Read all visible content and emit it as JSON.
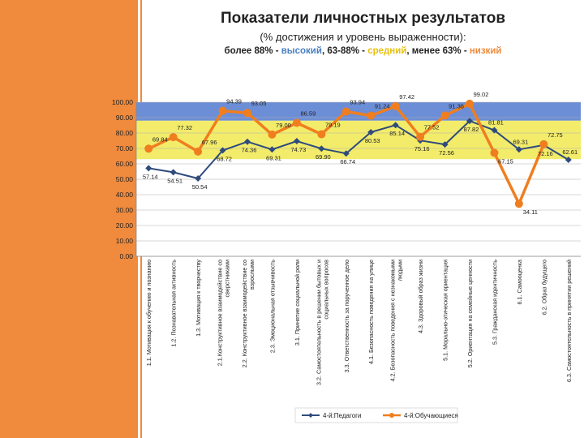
{
  "title": "Показатели личностных результатов",
  "subtitle": "(% достижения и уровень выраженности):",
  "levels": {
    "prefix": "более 88% - ",
    "high": "высокий",
    "sep1": ", 63-88% - ",
    "mid": "средний",
    "sep2": ",  менее 63% - ",
    "low": "низкий"
  },
  "colors": {
    "high_band": "#6c8ed6",
    "mid_band": "#f2ec6a",
    "low_band": "#ffffff",
    "teachers": "#2f4b7c",
    "students": "#f07e1f",
    "accent_left": "#f08a3c"
  },
  "chart_data": {
    "type": "line",
    "title": "Показатели личностных результатов",
    "ylim": [
      0,
      100
    ],
    "yticks": [
      "0.00",
      "10.00",
      "20.00",
      "30.00",
      "40.00",
      "50.00",
      "60.00",
      "70.00",
      "80.00",
      "90.00",
      "100.00"
    ],
    "bands": [
      {
        "name": "высокий",
        "from": 88,
        "to": 100
      },
      {
        "name": "средний",
        "from": 63,
        "to": 88
      },
      {
        "name": "низкий",
        "from": 0,
        "to": 63
      }
    ],
    "categories": [
      "1.1. Мотивация к обучению и познанию",
      "1.2. Познавательная активность",
      "1.3. Мотивация к творчеству",
      "2.1.Конструктивное взаимодействие со сверстниками",
      "2.2. Конструктивное взаимодействие со взрослыми",
      "2.3. Эмоциональная отзывчивость",
      "3.1. Принятие социальной роли",
      "3.2. Самостоятельность в решении бытовых и социальных вопросов",
      "3.3. Ответственность за порученное дело",
      "4.1. Безопасность поведения на улице",
      "4.2. Безопасность поведения с незнакомыми людьми",
      "4.3. Здоровый образ жизни",
      "5.1. Морально-этическая ориентация",
      "5.2. Ориентация на семейные ценности",
      "5.3. Гражданская идентичность",
      "6.1. Самооценка",
      "6.2. Образ будущего",
      "6.3. Самостоятельность в принятии решений"
    ],
    "series": [
      {
        "name": "4-й:Педагоги",
        "values": [
          57.14,
          54.51,
          50.54,
          68.72,
          74.36,
          69.31,
          74.73,
          69.9,
          66.74,
          80.53,
          85.14,
          75.16,
          72.56,
          87.82,
          81.81,
          69.31,
          72.16,
          62.61
        ],
        "labels": [
          "57.14",
          "54.51",
          "50.54",
          "68.72",
          "74.36",
          "69.31",
          "74.73",
          "69.90",
          "66.74",
          "80.53",
          "85.14",
          "75.16",
          "72.56",
          "87.82",
          "81.81",
          "69.31",
          "72.16",
          "62.61"
        ]
      },
      {
        "name": "4-й:Обучающиеся",
        "values": [
          69.84,
          77.32,
          67.96,
          94.39,
          93.05,
          79.0,
          86.59,
          79.19,
          93.94,
          91.24,
          97.42,
          77.52,
          91.36,
          99.02,
          67.15,
          34.11,
          72.75,
          null
        ],
        "labels": [
          "69.84",
          "77.32",
          "67.96",
          "94.39",
          "93.05",
          "79.00",
          "86.59",
          "79.19",
          "93.94",
          "91.24",
          "97.42",
          "77.52",
          "91.36",
          "99.02",
          "67.15",
          "34.11",
          "72.75",
          ""
        ]
      }
    ],
    "legend": {
      "position": "bottom",
      "items": [
        "4-й:Педагоги",
        "4-й:Обучающиеся"
      ]
    }
  }
}
